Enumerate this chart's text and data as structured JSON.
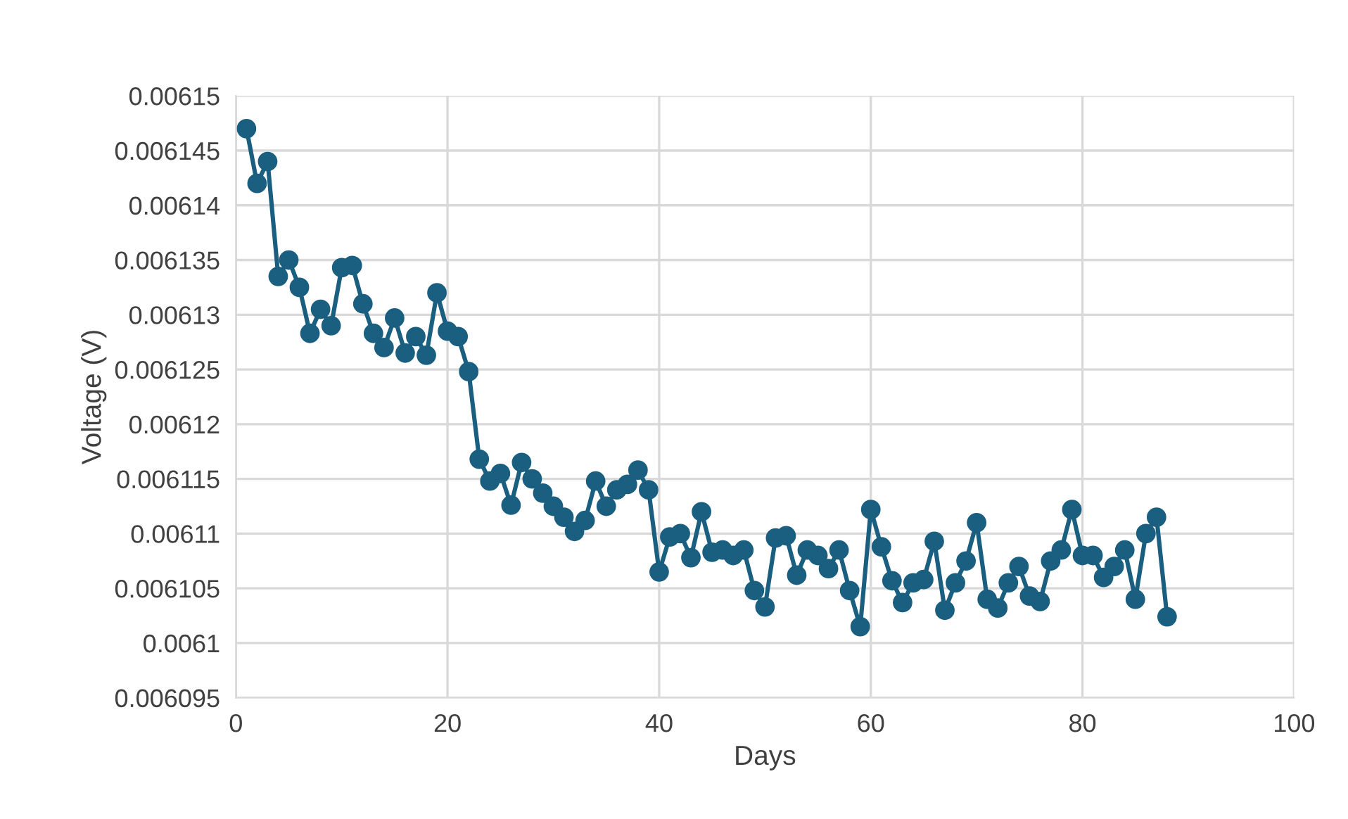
{
  "chart_data": {
    "type": "line",
    "xlabel": "Days",
    "ylabel": "Voltage (V)",
    "x": [
      1,
      2,
      3,
      4,
      5,
      6,
      7,
      8,
      9,
      10,
      11,
      12,
      13,
      14,
      15,
      16,
      17,
      18,
      19,
      20,
      21,
      22,
      23,
      24,
      25,
      26,
      27,
      28,
      29,
      30,
      31,
      32,
      33,
      34,
      35,
      36,
      37,
      38,
      39,
      40,
      41,
      42,
      43,
      44,
      45,
      46,
      47,
      48,
      49,
      50,
      51,
      52,
      53,
      54,
      55,
      56,
      57,
      58,
      59,
      60,
      61,
      62,
      63,
      64,
      65,
      66,
      67,
      68,
      69,
      70,
      71,
      72,
      73,
      74,
      75,
      76,
      77,
      78,
      79,
      80,
      81,
      82,
      83,
      84,
      85,
      86,
      87,
      88
    ],
    "series": [
      {
        "color": "#1a5f80",
        "values": [
          0.006147,
          0.006142,
          0.006144,
          0.0061335,
          0.006135,
          0.0061325,
          0.0061283,
          0.0061305,
          0.006129,
          0.0061343,
          0.0061345,
          0.006131,
          0.0061283,
          0.006127,
          0.0061297,
          0.0061265,
          0.006128,
          0.0061263,
          0.006132,
          0.0061285,
          0.006128,
          0.0061248,
          0.0061168,
          0.0061148,
          0.0061155,
          0.0061126,
          0.0061165,
          0.006115,
          0.0061137,
          0.0061125,
          0.0061115,
          0.0061102,
          0.0061112,
          0.0061148,
          0.0061125,
          0.006114,
          0.0061145,
          0.0061158,
          0.006114,
          0.0061065,
          0.0061097,
          0.00611,
          0.0061078,
          0.006112,
          0.0061083,
          0.0061085,
          0.006108,
          0.0061085,
          0.0061048,
          0.0061033,
          0.0061096,
          0.0061098,
          0.0061062,
          0.0061085,
          0.006108,
          0.0061068,
          0.0061085,
          0.0061048,
          0.0061015,
          0.0061122,
          0.0061088,
          0.0061057,
          0.0061037,
          0.0061055,
          0.0061058,
          0.0061093,
          0.006103,
          0.0061055,
          0.0061075,
          0.006111,
          0.006104,
          0.0061032,
          0.0061055,
          0.006107,
          0.0061043,
          0.0061038,
          0.0061075,
          0.0061085,
          0.0061122,
          0.006108,
          0.006108,
          0.006106,
          0.006107,
          0.0061085,
          0.006104,
          0.00611,
          0.0061115,
          0.0061024
        ]
      }
    ],
    "xlim": [
      0,
      100
    ],
    "xticks": [
      0,
      20,
      40,
      60,
      80,
      100
    ],
    "ylim": [
      0.006095,
      0.00615
    ],
    "yticks": [
      0.006095,
      0.0061,
      0.006105,
      0.00611,
      0.006115,
      0.00612,
      0.006125,
      0.00613,
      0.006135,
      0.00614,
      0.006145,
      0.00615
    ],
    "grid": true,
    "marker": "circle",
    "line_style": "solid"
  }
}
